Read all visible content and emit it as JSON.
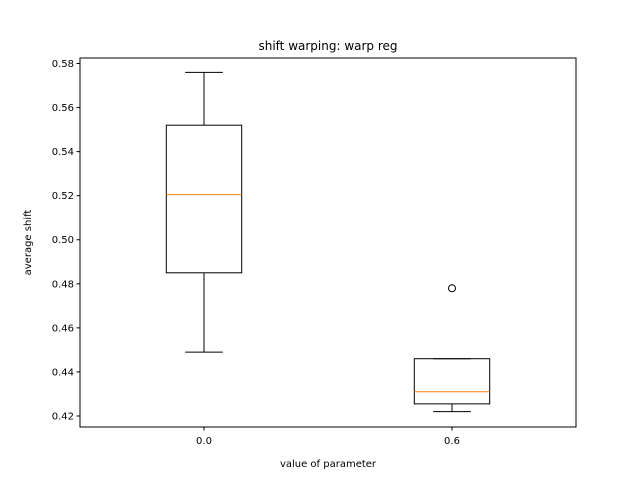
{
  "chart_data": {
    "type": "boxplot",
    "title": "shift warping: warp reg",
    "xlabel": "value of parameter",
    "ylabel": "average shift",
    "ylim": [
      0.415,
      0.5825
    ],
    "yticks": [
      "0.42",
      "0.44",
      "0.46",
      "0.48",
      "0.50",
      "0.52",
      "0.54",
      "0.56",
      "0.58"
    ],
    "categories": [
      "0.0",
      "0.6"
    ],
    "boxes": [
      {
        "whisker_low": 0.449,
        "q1": 0.485,
        "median": 0.5205,
        "q3": 0.552,
        "whisker_high": 0.576,
        "outliers": []
      },
      {
        "whisker_low": 0.422,
        "q1": 0.4255,
        "median": 0.431,
        "q3": 0.446,
        "whisker_high": 0.446,
        "outliers": [
          0.478
        ]
      }
    ],
    "colors": {
      "box": "#000000",
      "median": "#ff7f0e",
      "outlier": "#000000"
    },
    "grid": false
  }
}
